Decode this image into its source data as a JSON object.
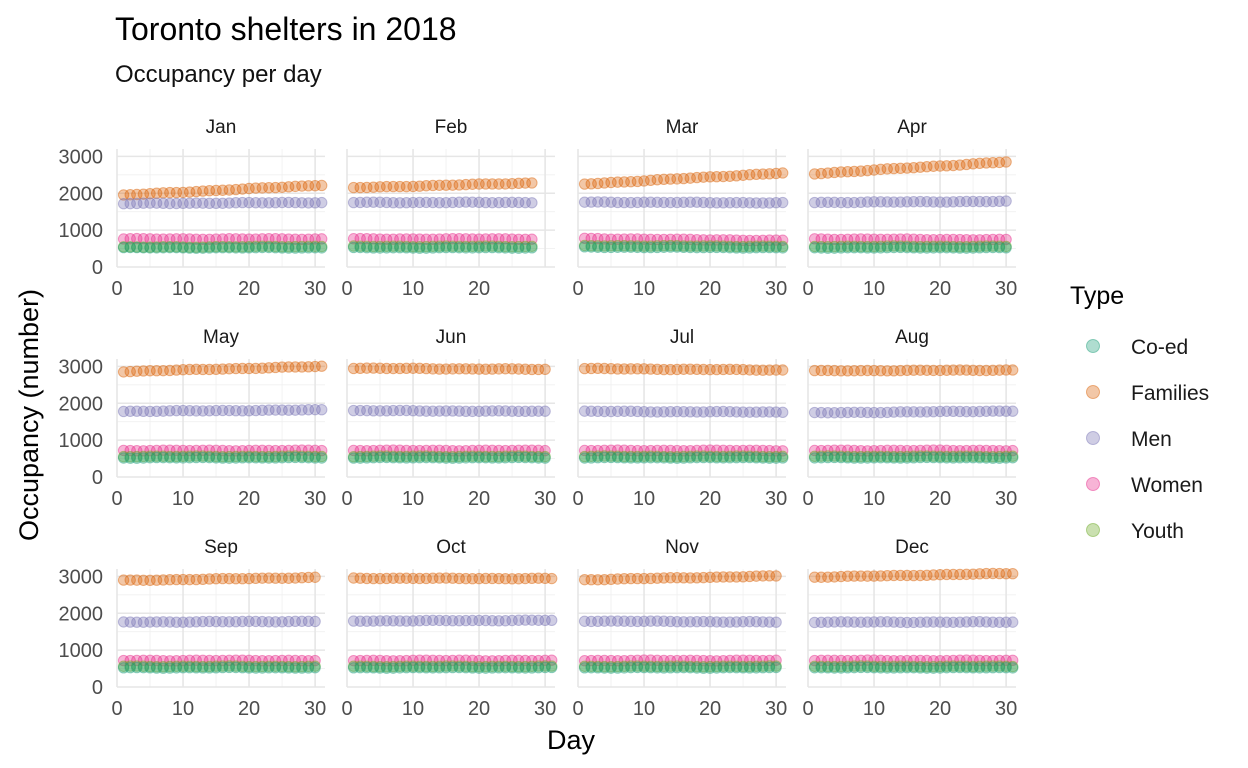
{
  "chart_data": {
    "type": "scatter",
    "title": "Toronto shelters in 2018",
    "subtitle": "Occupancy per day",
    "xlabel": "Day",
    "ylabel": "Occupancy (number)",
    "ylim": [
      0,
      3200
    ],
    "yticks": [
      0,
      1000,
      2000,
      3000
    ],
    "xticks": [
      0,
      10,
      20,
      30
    ],
    "grid": true,
    "legend": {
      "title": "Type",
      "placement": "right"
    },
    "series": [
      {
        "name": "Co-ed",
        "color": "#1b9e77"
      },
      {
        "name": "Families",
        "color": "#d95f02"
      },
      {
        "name": "Men",
        "color": "#7570b3"
      },
      {
        "name": "Women",
        "color": "#e7298a"
      },
      {
        "name": "Youth",
        "color": "#66a61e"
      }
    ],
    "facets": [
      {
        "month": "Jan",
        "days": 31,
        "values": {
          "Co-ed": [
            520,
            520
          ],
          "Families": [
            1950,
            2220
          ],
          "Men": [
            1720,
            1750
          ],
          "Women": [
            760,
            760
          ],
          "Youth": [
            540,
            560
          ]
        }
      },
      {
        "month": "Feb",
        "days": 28,
        "values": {
          "Co-ed": [
            520,
            520
          ],
          "Families": [
            2150,
            2280
          ],
          "Men": [
            1750,
            1750
          ],
          "Women": [
            760,
            760
          ],
          "Youth": [
            560,
            560
          ]
        }
      },
      {
        "month": "Mar",
        "days": 31,
        "values": {
          "Co-ed": [
            540,
            520
          ],
          "Families": [
            2250,
            2550
          ],
          "Men": [
            1760,
            1740
          ],
          "Women": [
            770,
            720
          ],
          "Youth": [
            580,
            560
          ]
        }
      },
      {
        "month": "Apr",
        "days": 30,
        "values": {
          "Co-ed": [
            520,
            520
          ],
          "Families": [
            2530,
            2850
          ],
          "Men": [
            1750,
            1780
          ],
          "Women": [
            760,
            740
          ],
          "Youth": [
            560,
            560
          ]
        }
      },
      {
        "month": "May",
        "days": 31,
        "values": {
          "Co-ed": [
            520,
            520
          ],
          "Families": [
            2860,
            3000
          ],
          "Men": [
            1780,
            1820
          ],
          "Women": [
            720,
            720
          ],
          "Youth": [
            560,
            560
          ]
        }
      },
      {
        "month": "Jun",
        "days": 30,
        "values": {
          "Co-ed": [
            520,
            520
          ],
          "Families": [
            2950,
            2920
          ],
          "Men": [
            1800,
            1780
          ],
          "Women": [
            720,
            720
          ],
          "Youth": [
            560,
            560
          ]
        }
      },
      {
        "month": "Jul",
        "days": 31,
        "values": {
          "Co-ed": [
            520,
            520
          ],
          "Families": [
            2940,
            2900
          ],
          "Men": [
            1780,
            1760
          ],
          "Women": [
            720,
            720
          ],
          "Youth": [
            560,
            560
          ]
        }
      },
      {
        "month": "Aug",
        "days": 31,
        "values": {
          "Co-ed": [
            520,
            520
          ],
          "Families": [
            2880,
            2900
          ],
          "Men": [
            1740,
            1790
          ],
          "Women": [
            720,
            720
          ],
          "Youth": [
            560,
            560
          ]
        }
      },
      {
        "month": "Sep",
        "days": 30,
        "values": {
          "Co-ed": [
            520,
            520
          ],
          "Families": [
            2890,
            2970
          ],
          "Men": [
            1760,
            1780
          ],
          "Women": [
            720,
            720
          ],
          "Youth": [
            560,
            560
          ]
        }
      },
      {
        "month": "Oct",
        "days": 31,
        "values": {
          "Co-ed": [
            520,
            520
          ],
          "Families": [
            2950,
            2940
          ],
          "Men": [
            1790,
            1810
          ],
          "Women": [
            720,
            720
          ],
          "Youth": [
            560,
            560
          ]
        }
      },
      {
        "month": "Nov",
        "days": 30,
        "values": {
          "Co-ed": [
            520,
            520
          ],
          "Families": [
            2910,
            3010
          ],
          "Men": [
            1790,
            1760
          ],
          "Women": [
            720,
            720
          ],
          "Youth": [
            560,
            560
          ]
        }
      },
      {
        "month": "Dec",
        "days": 31,
        "values": {
          "Co-ed": [
            520,
            520
          ],
          "Families": [
            2980,
            3080
          ],
          "Men": [
            1760,
            1760
          ],
          "Women": [
            720,
            720
          ],
          "Youth": [
            560,
            560
          ]
        }
      }
    ]
  }
}
